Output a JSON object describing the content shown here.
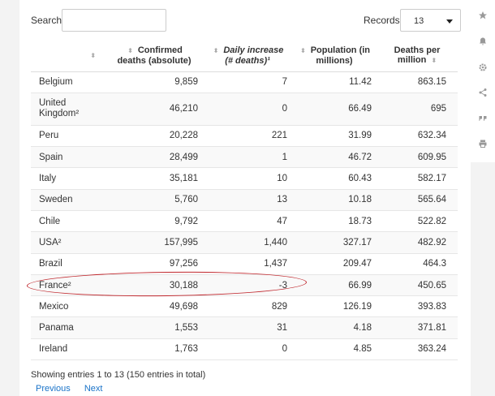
{
  "toolbar": {
    "search_label": "Search:",
    "search_value": "",
    "records_label": "Records:",
    "records_value": "13"
  },
  "table": {
    "headers": [
      "",
      "Confirmed deaths (absolute)",
      "Daily increase (# deaths)¹",
      "Population (in millions)",
      "Deaths per million"
    ],
    "rows": [
      {
        "country": "Belgium",
        "deaths": "9,859",
        "daily": "7",
        "population": "11.42",
        "per_million": "863.15"
      },
      {
        "country": "United Kingdom²",
        "deaths": "46,210",
        "daily": "0",
        "population": "66.49",
        "per_million": "695"
      },
      {
        "country": "Peru",
        "deaths": "20,228",
        "daily": "221",
        "population": "31.99",
        "per_million": "632.34"
      },
      {
        "country": "Spain",
        "deaths": "28,499",
        "daily": "1",
        "population": "46.72",
        "per_million": "609.95"
      },
      {
        "country": "Italy",
        "deaths": "35,181",
        "daily": "10",
        "population": "60.43",
        "per_million": "582.17"
      },
      {
        "country": "Sweden",
        "deaths": "5,760",
        "daily": "13",
        "population": "10.18",
        "per_million": "565.64"
      },
      {
        "country": "Chile",
        "deaths": "9,792",
        "daily": "47",
        "population": "18.73",
        "per_million": "522.82"
      },
      {
        "country": "USA²",
        "deaths": "157,995",
        "daily": "1,440",
        "population": "327.17",
        "per_million": "482.92"
      },
      {
        "country": "Brazil",
        "deaths": "97,256",
        "daily": "1,437",
        "population": "209.47",
        "per_million": "464.3"
      },
      {
        "country": "France²",
        "deaths": "30,188",
        "daily": "-3",
        "population": "66.99",
        "per_million": "450.65"
      },
      {
        "country": "Mexico",
        "deaths": "49,698",
        "daily": "829",
        "population": "126.19",
        "per_million": "393.83"
      },
      {
        "country": "Panama",
        "deaths": "1,553",
        "daily": "31",
        "population": "4.18",
        "per_million": "371.81"
      },
      {
        "country": "Ireland",
        "deaths": "1,763",
        "daily": "0",
        "population": "4.85",
        "per_million": "363.24"
      }
    ]
  },
  "footer": {
    "summary": "Showing entries 1 to 13 (150 entries in total)",
    "previous": "Previous",
    "next": "Next"
  },
  "sort_icon": "sort-arrows-icon",
  "side_rail_icons": [
    "star-icon",
    "bell-icon",
    "gear-icon",
    "share-icon",
    "quote-icon",
    "print-icon"
  ],
  "colors": {
    "link": "#1a73c8",
    "highlight": "#c0272d"
  }
}
